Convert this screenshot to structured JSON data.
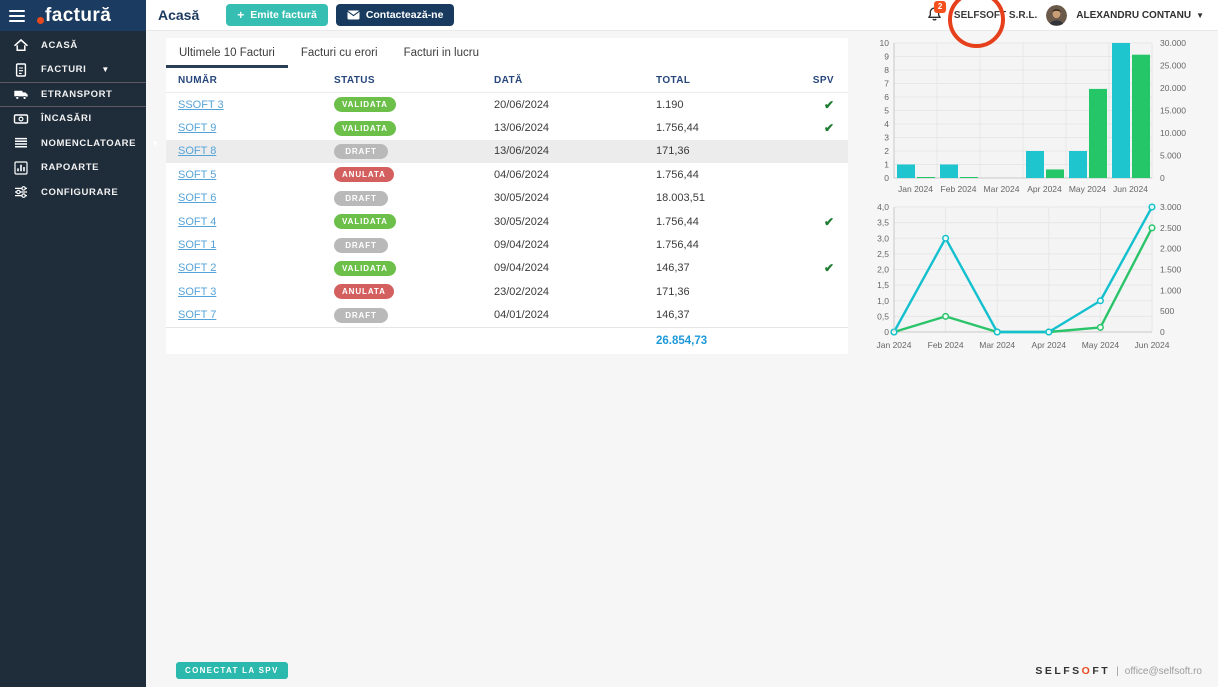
{
  "app": {
    "logo_text": "factură"
  },
  "header": {
    "page_title": "Acasă",
    "emit_invoice_label": "Emite factură",
    "contact_label": "Contactează-ne",
    "notification_count": "2",
    "company_name": "SELFSOFT S.R.L.",
    "user_name": "ALEXANDRU CONTANU"
  },
  "sidebar": {
    "items": [
      {
        "label": "ACASĂ",
        "icon": "home-icon",
        "caret": false,
        "divided": false
      },
      {
        "label": "FACTURI",
        "icon": "invoice-icon",
        "caret": true,
        "divided": false
      },
      {
        "label": "ETRANSPORT",
        "icon": "truck-icon",
        "caret": false,
        "divided": true
      },
      {
        "label": "ÎNCASĂRI",
        "icon": "cash-icon",
        "caret": false,
        "divided": false
      },
      {
        "label": "NOMENCLATOARE",
        "icon": "list-icon",
        "caret": true,
        "divided": false
      },
      {
        "label": "RAPOARTE",
        "icon": "report-icon",
        "caret": false,
        "divided": false
      },
      {
        "label": "CONFIGURARE",
        "icon": "sliders-icon",
        "caret": false,
        "divided": false
      }
    ]
  },
  "tabs": [
    {
      "label": "Ultimele 10 Facturi",
      "active": true
    },
    {
      "label": "Facturi cu erori",
      "active": false
    },
    {
      "label": "Facturi in lucru",
      "active": false
    }
  ],
  "table": {
    "columns": [
      "NUMĂR",
      "STATUS",
      "DATĂ",
      "TOTAL",
      "SPV"
    ],
    "rows": [
      {
        "number": "SSOFT 3",
        "status": "VALIDATA",
        "date": "20/06/2024",
        "total": "1.190",
        "spv": true,
        "highlighted": false
      },
      {
        "number": "SOFT 9",
        "status": "VALIDATA",
        "date": "13/06/2024",
        "total": "1.756,44",
        "spv": true,
        "highlighted": false
      },
      {
        "number": "SOFT 8",
        "status": "DRAFT",
        "date": "13/06/2024",
        "total": "171,36",
        "spv": false,
        "highlighted": true
      },
      {
        "number": "SOFT 5",
        "status": "ANULATA",
        "date": "04/06/2024",
        "total": "1.756,44",
        "spv": false,
        "highlighted": false
      },
      {
        "number": "SOFT 6",
        "status": "DRAFT",
        "date": "30/05/2024",
        "total": "18.003,51",
        "spv": false,
        "highlighted": false
      },
      {
        "number": "SOFT 4",
        "status": "VALIDATA",
        "date": "30/05/2024",
        "total": "1.756,44",
        "spv": true,
        "highlighted": false
      },
      {
        "number": "SOFT 1",
        "status": "DRAFT",
        "date": "09/04/2024",
        "total": "1.756,44",
        "spv": false,
        "highlighted": false
      },
      {
        "number": "SOFT 2",
        "status": "VALIDATA",
        "date": "09/04/2024",
        "total": "146,37",
        "spv": true,
        "highlighted": false
      },
      {
        "number": "SOFT 3",
        "status": "ANULATA",
        "date": "23/02/2024",
        "total": "171,36",
        "spv": false,
        "highlighted": false
      },
      {
        "number": "SOFT 7",
        "status": "DRAFT",
        "date": "04/01/2024",
        "total": "146,37",
        "spv": false,
        "highlighted": false
      }
    ],
    "grand_total": "26.854,73",
    "status_colors": {
      "VALIDATA": "#6cc04a",
      "DRAFT": "#b9b9b9",
      "ANULATA": "#d45f5f"
    }
  },
  "footer": {
    "spv_badge": "CONECTAT LA SPV",
    "brand_part1": "SELFS",
    "brand_accent": "O",
    "brand_part2": "FT",
    "separator": "|",
    "email": "office@selfsoft.ro"
  },
  "colors": {
    "sidebar_bg": "#1f2c3a",
    "logo_bg": "#1b3b60",
    "brand_orange": "#e8491f",
    "teal_button": "#35beb1",
    "navy_button": "#173a5e",
    "annotation_red": "#e63f1b",
    "badge_orange": "#f4511e",
    "link_blue": "#56a3d8",
    "total_blue": "#1e9ad8",
    "check_green": "#1e7d32"
  },
  "chart_data": [
    {
      "type": "bar",
      "categories": [
        "Jan 2024",
        "Feb 2024",
        "Mar 2024",
        "Apr 2024",
        "May 2024",
        "Jun 2024"
      ],
      "series": [
        {
          "axis": "left",
          "color": "#1ec5cf",
          "values": [
            1,
            1,
            0,
            2,
            2,
            10
          ]
        },
        {
          "axis": "right",
          "color": "#24c668",
          "values": [
            150,
            170,
            0,
            1900,
            19800,
            27400
          ]
        }
      ],
      "left_axis": {
        "min": 0,
        "max": 10,
        "tick_labels": [
          "10",
          "9",
          "8",
          "7",
          "6",
          "5",
          "4",
          "3",
          "2",
          "1",
          "0"
        ]
      },
      "right_axis": {
        "min": 0,
        "max": 30000,
        "tick_labels": [
          "30.000",
          "25.000",
          "20.000",
          "15.000",
          "10.000",
          "5.000",
          "0"
        ]
      },
      "grid": true,
      "legend": "none",
      "title": ""
    },
    {
      "type": "line",
      "categories": [
        "Jan 2024",
        "Feb 2024",
        "Mar 2024",
        "Apr 2024",
        "May 2024",
        "Jun 2024"
      ],
      "series": [
        {
          "axis": "right",
          "color": "#2bc46a",
          "values": [
            0,
            375,
            0,
            0,
            110,
            2500
          ]
        },
        {
          "axis": "left",
          "color": "#14c0ce",
          "values": [
            0,
            3,
            0,
            0,
            1,
            4
          ]
        }
      ],
      "left_axis": {
        "min": 0,
        "max": 4,
        "tick_labels": [
          "4,0",
          "3,5",
          "3,0",
          "2,5",
          "2,0",
          "1,5",
          "1,0",
          "0,5",
          "0"
        ]
      },
      "right_axis": {
        "min": 0,
        "max": 3000,
        "tick_labels": [
          "3.000",
          "2.500",
          "2.000",
          "1.500",
          "1.000",
          "500",
          "0"
        ]
      },
      "grid": true,
      "legend": "none",
      "title": ""
    }
  ]
}
